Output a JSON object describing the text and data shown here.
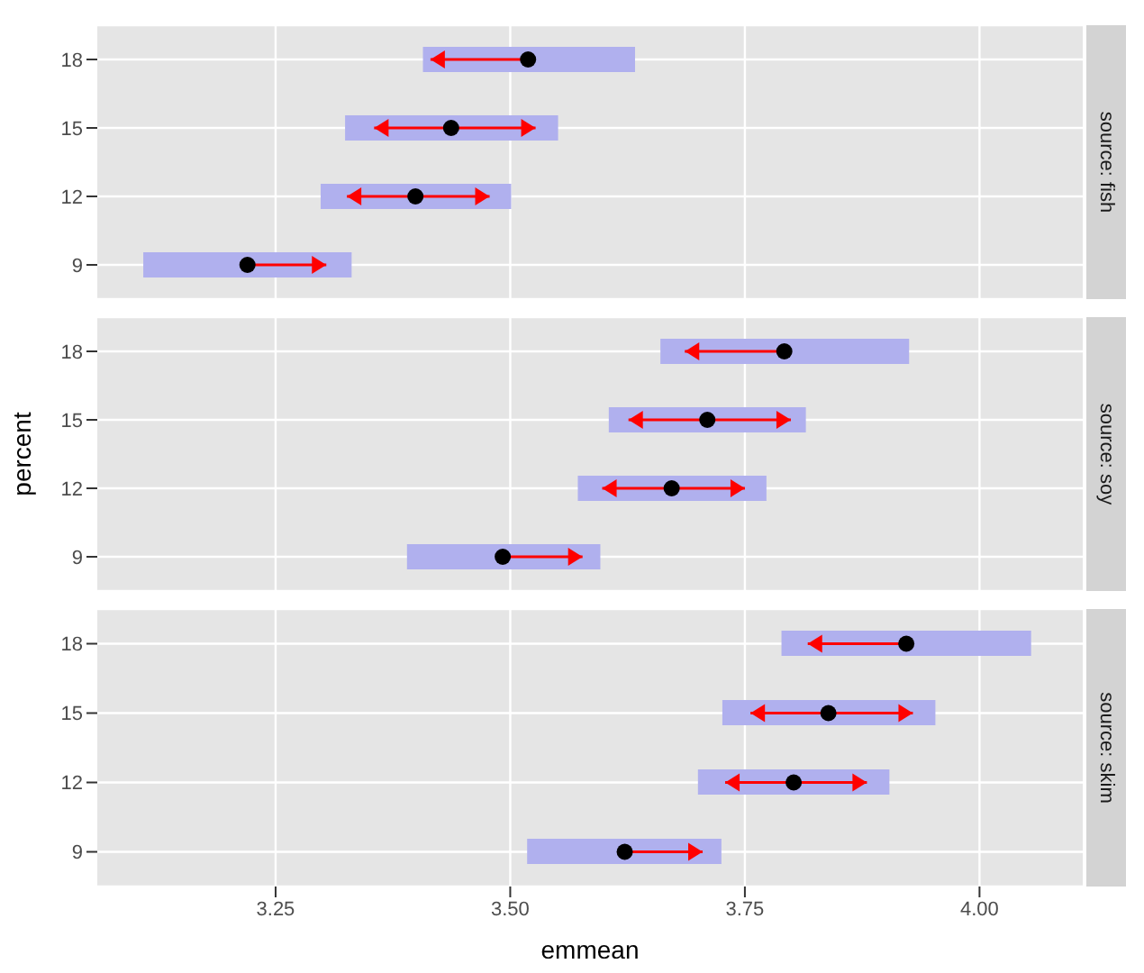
{
  "chart_data": [
    {
      "type": "bar",
      "orientation": "horizontal",
      "y2label": "source: fish",
      "categories": [
        "18",
        "15",
        "12",
        "9"
      ],
      "xlim": [
        3.06,
        4.11
      ],
      "xticks": [
        3.25,
        3.5,
        3.75,
        4
      ],
      "tick_labels": "y",
      "grid": true,
      "marker": "circle",
      "series": [
        {
          "type": "bar",
          "color": "#b0b0ee",
          "base": [
            3.407,
            3.324,
            3.298,
            3.109
          ],
          "values": [
            0.226,
            0.227,
            0.203,
            0.222
          ]
        },
        {
          "type": "scatter",
          "color": "#000000",
          "values": [
            3.519,
            3.437,
            3.399,
            3.22
          ],
          "errors": [
            [
              3.415,
              3.519
            ],
            [
              3.355,
              3.527
            ],
            [
              3.326,
              3.478
            ],
            [
              3.22,
              3.304
            ]
          ]
        }
      ]
    },
    {
      "type": "bar",
      "orientation": "horizontal",
      "y2label": "source: soy",
      "ylabel": "percent",
      "categories": [
        "18",
        "15",
        "12",
        "9"
      ],
      "xlim": [
        3.06,
        4.11
      ],
      "xticks": [
        3.25,
        3.5,
        3.75,
        4
      ],
      "tick_labels": "y",
      "grid": true,
      "marker": "circle",
      "series": [
        {
          "type": "bar",
          "color": "#b0b0ee",
          "base": [
            3.66,
            3.605,
            3.572,
            3.39
          ],
          "values": [
            0.265,
            0.21,
            0.201,
            0.206
          ]
        },
        {
          "type": "scatter",
          "color": "#000000",
          "values": [
            3.792,
            3.71,
            3.672,
            3.492
          ],
          "errors": [
            [
              3.686,
              3.792
            ],
            [
              3.626,
              3.799
            ],
            [
              3.598,
              3.75
            ],
            [
              3.492,
              3.577
            ]
          ]
        }
      ]
    },
    {
      "type": "bar",
      "orientation": "horizontal",
      "y2label": "source: skim",
      "xlabel": "emmean",
      "categories": [
        "18",
        "15",
        "12",
        "9"
      ],
      "xlim": [
        3.06,
        4.11
      ],
      "xticks": [
        3.25,
        {
          "value": 3.5,
          "label": "3.50"
        },
        3.75,
        {
          "value": 4,
          "label": "4.00"
        }
      ],
      "grid": true,
      "marker": "circle",
      "series": [
        {
          "type": "bar",
          "color": "#b0b0ee",
          "base": [
            3.789,
            3.726,
            3.7,
            3.518
          ],
          "values": [
            0.266,
            0.227,
            0.204,
            0.207
          ]
        },
        {
          "type": "scatter",
          "color": "#000000",
          "values": [
            3.922,
            3.839,
            3.802,
            3.622
          ],
          "errors": [
            [
              3.817,
              3.922
            ],
            [
              3.756,
              3.929
            ],
            [
              3.729,
              3.88
            ],
            [
              3.622,
              3.705
            ]
          ]
        }
      ]
    }
  ]
}
